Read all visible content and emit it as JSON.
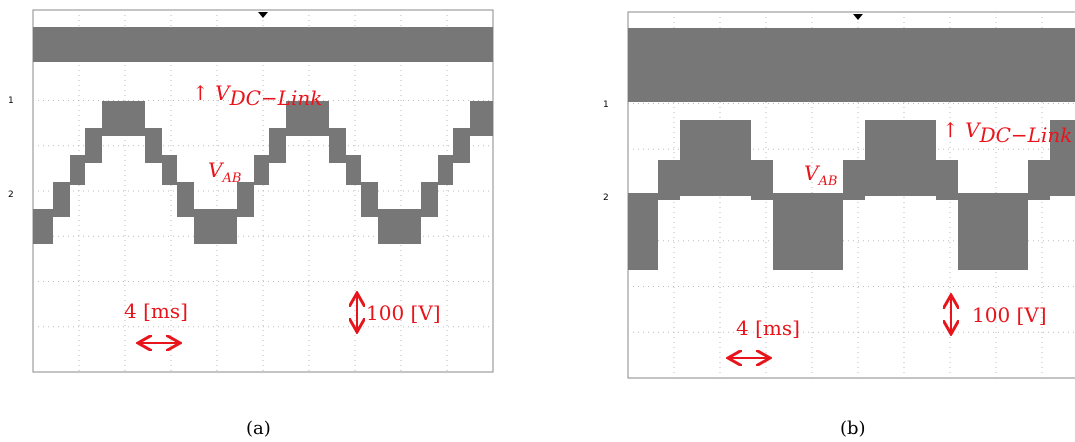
{
  "panels": [
    {
      "label": "(a)",
      "channel_markers": [
        "1",
        "2"
      ],
      "vdc": {
        "arrow": "↑",
        "symbol": "V",
        "subscript": "DC−Link"
      },
      "vab": {
        "symbol": "V",
        "subscript": "AB"
      },
      "time_scale": "4 [ms]",
      "voltage_scale": "100 [V]"
    },
    {
      "label": "(b)",
      "channel_markers": [
        "1",
        "2"
      ],
      "vdc": {
        "arrow": "↑",
        "symbol": "V",
        "subscript": "DC−Link"
      },
      "vab": {
        "symbol": "V",
        "subscript": "AB"
      },
      "time_scale": "4 [ms]",
      "voltage_scale": "100 [V]"
    }
  ]
}
